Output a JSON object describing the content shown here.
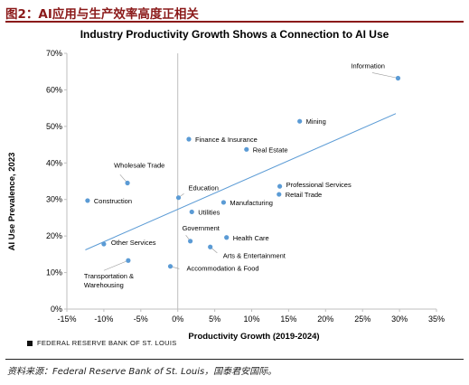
{
  "figure": {
    "title": "图2：AI应用与生产效率高度正相关",
    "chart_title": "Industry Productivity Growth Shows a Connection to AI Use",
    "source_label": "FEDERAL RESERVE BANK OF ST. LOUIS",
    "footer_note": "资料来源：Federal Reserve Bank of St. Louis，国泰君安国际。"
  },
  "chart_data": {
    "type": "scatter",
    "title": "Industry Productivity Growth Shows a Connection to AI Use",
    "xlabel": "Productivity Growth (2019-2024)",
    "ylabel": "AI Use Prevalence, 2023",
    "xlim": [
      -0.15,
      0.35
    ],
    "ylim": [
      0,
      0.7
    ],
    "x_ticks": [
      "-15%",
      "-10%",
      "-5%",
      "0%",
      "5%",
      "10%",
      "15%",
      "20%",
      "25%",
      "30%",
      "35%"
    ],
    "y_ticks": [
      "0%",
      "10%",
      "20%",
      "30%",
      "40%",
      "50%",
      "60%",
      "70%"
    ],
    "grid": false,
    "trendline": {
      "x": [
        -0.125,
        0.295
      ],
      "y": [
        0.162,
        0.535
      ]
    },
    "points": [
      {
        "label": "Information",
        "x": 0.298,
        "y": 0.632
      },
      {
        "label": "Mining",
        "x": 0.165,
        "y": 0.514
      },
      {
        "label": "Finance & Insurance",
        "x": 0.015,
        "y": 0.465
      },
      {
        "label": "Real Estate",
        "x": 0.093,
        "y": 0.437
      },
      {
        "label": "Wholesale Trade",
        "x": -0.068,
        "y": 0.345
      },
      {
        "label": "Professional Services",
        "x": 0.138,
        "y": 0.336
      },
      {
        "label": "Retail Trade",
        "x": 0.137,
        "y": 0.314
      },
      {
        "label": "Education",
        "x": 0.001,
        "y": 0.305
      },
      {
        "label": "Construction",
        "x": -0.122,
        "y": 0.297
      },
      {
        "label": "Manufacturing",
        "x": 0.062,
        "y": 0.292
      },
      {
        "label": "Utilities",
        "x": 0.019,
        "y": 0.266
      },
      {
        "label": "Government",
        "x": 0.017,
        "y": 0.186
      },
      {
        "label": "Health Care",
        "x": 0.066,
        "y": 0.196
      },
      {
        "label": "Other Services",
        "x": -0.1,
        "y": 0.178
      },
      {
        "label": "Arts & Entertainment",
        "x": 0.044,
        "y": 0.17
      },
      {
        "label": "Transportation & Warehousing",
        "x": -0.067,
        "y": 0.133
      },
      {
        "label": "Accommodation & Food",
        "x": -0.01,
        "y": 0.117
      }
    ],
    "colors": {
      "point": "#5b9bd5",
      "trend": "#5b9bd5",
      "leader": "#999999"
    }
  }
}
